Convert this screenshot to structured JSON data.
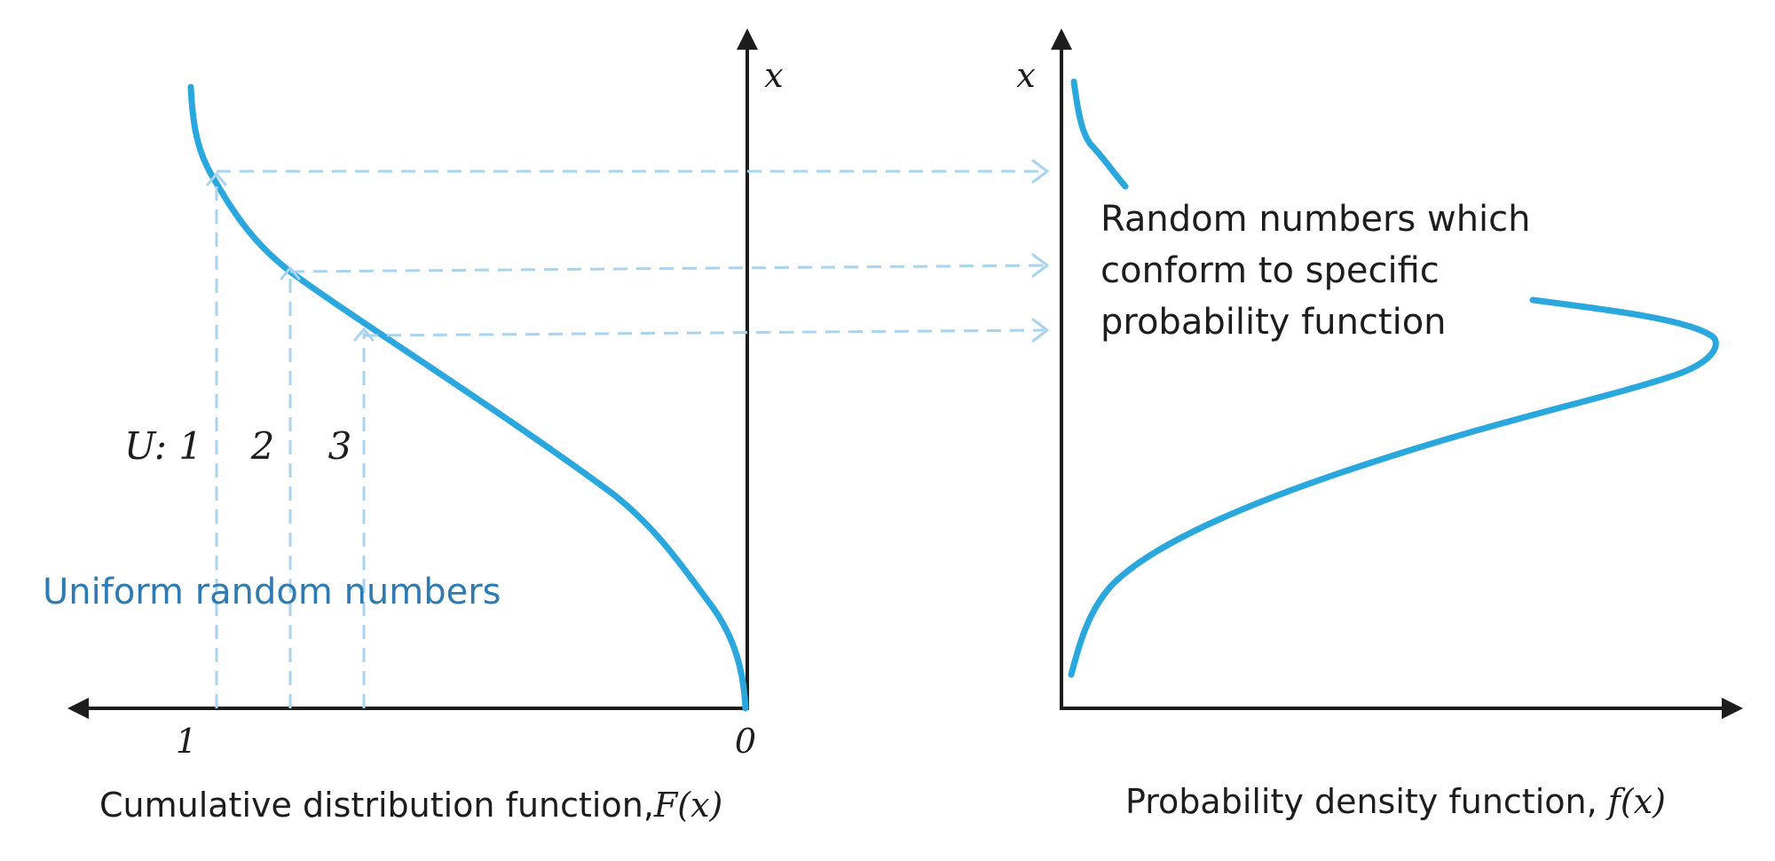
{
  "left_panel": {
    "title_prefix": "Cumulative distribution function,",
    "title_func": "F(x)",
    "axis_label_x": "x",
    "tick_one": "1",
    "tick_zero": "0",
    "u_labels": [
      "U: 1",
      "2",
      "3"
    ],
    "uniform_label": "Uniform random numbers"
  },
  "right_panel": {
    "title_prefix": "Probability density function, ",
    "title_func": "f(x)",
    "axis_label_x": "x",
    "annotation_lines": [
      "Random numbers which",
      "conform to specific",
      "probability function"
    ]
  },
  "colors": {
    "curve": "#2aa8de",
    "dashed": "#a9d4f0",
    "uniform_label": "#2f7bb1",
    "axis": "#1d1d1d"
  }
}
